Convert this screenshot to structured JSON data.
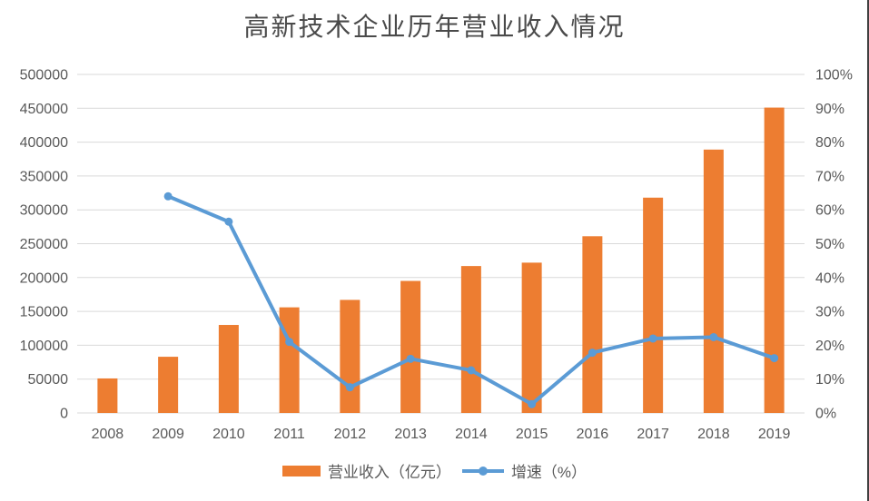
{
  "title": "高新技术企业历年营业收入情况",
  "colors": {
    "bar": "#ED7D31",
    "line": "#5B9BD5",
    "gridline": "#D9D9D9",
    "axis_text": "#595959",
    "title_text": "#4A4A4A",
    "frame_border": "#404040",
    "background": "#FFFFFF"
  },
  "legend": {
    "items": [
      {
        "label": "营业收入（亿元）",
        "marker": "bar-swatch",
        "color": "#ED7D31"
      },
      {
        "label": "增速（%）",
        "marker": "line-with-dot",
        "color": "#5B9BD5"
      }
    ]
  },
  "chart_data": {
    "type": "bar+line combo",
    "title": "高新技术企业历年营业收入情况",
    "categories": [
      "2008",
      "2009",
      "2010",
      "2011",
      "2012",
      "2013",
      "2014",
      "2015",
      "2016",
      "2017",
      "2018",
      "2019"
    ],
    "series": [
      {
        "name": "营业收入（亿元）",
        "chart": "bar",
        "axis": "left",
        "color": "#ED7D31",
        "values": [
          51000,
          83000,
          130000,
          156000,
          167000,
          195000,
          217000,
          222000,
          261000,
          318000,
          389000,
          451000
        ]
      },
      {
        "name": "增速（%）",
        "chart": "line",
        "axis": "right",
        "color": "#5B9BD5",
        "values": [
          null,
          64,
          56.5,
          21,
          7.6,
          16,
          12.6,
          2.6,
          17.8,
          22,
          22.4,
          16.2
        ]
      }
    ],
    "left_axis": {
      "min": 0,
      "max": 500000,
      "step": 50000,
      "ticks": [
        "0",
        "50000",
        "100000",
        "150000",
        "200000",
        "250000",
        "300000",
        "350000",
        "400000",
        "450000",
        "500000"
      ]
    },
    "right_axis": {
      "min": 0,
      "max": 100,
      "step": 10,
      "ticks": [
        "0%",
        "10%",
        "20%",
        "30%",
        "40%",
        "50%",
        "60%",
        "70%",
        "80%",
        "90%",
        "100%"
      ]
    },
    "grid": "horizontal",
    "legend_position": "bottom"
  }
}
